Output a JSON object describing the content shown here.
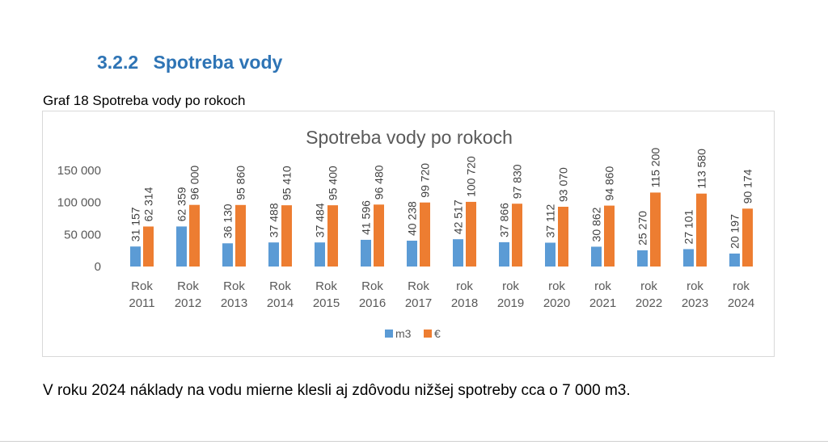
{
  "section": {
    "number": "3.2.2",
    "title": "Spotreba vody"
  },
  "figure": {
    "caption": "Graf 18 Spotreba vody po rokoch"
  },
  "chart_data": {
    "type": "bar",
    "title": "Spotreba vody po rokoch",
    "categories": [
      [
        "Rok",
        "2011"
      ],
      [
        "Rok",
        "2012"
      ],
      [
        "Rok",
        "2013"
      ],
      [
        "Rok",
        "2014"
      ],
      [
        "Rok",
        "2015"
      ],
      [
        "Rok",
        "2016"
      ],
      [
        "Rok",
        "2017"
      ],
      [
        "rok",
        "2018"
      ],
      [
        "rok",
        "2019"
      ],
      [
        "rok",
        "2020"
      ],
      [
        "rok",
        "2021"
      ],
      [
        "rok",
        "2022"
      ],
      [
        "rok",
        "2023"
      ],
      [
        "rok",
        "2024"
      ]
    ],
    "series": [
      {
        "name": "m3",
        "color": "#5B9BD5",
        "values": [
          31157,
          62359,
          36130,
          37488,
          37484,
          41596,
          40238,
          42517,
          37866,
          37112,
          30862,
          25270,
          27101,
          20197
        ],
        "labels": [
          "31 157",
          "62 359",
          "36 130",
          "37 488",
          "37 484",
          "41 596",
          "40 238",
          "42 517",
          "37 866",
          "37 112",
          "30 862",
          "25 270",
          "27 101",
          "20 197"
        ]
      },
      {
        "name": "€",
        "color": "#ED7D31",
        "values": [
          62314,
          96000,
          95860,
          95410,
          95400,
          96480,
          99720,
          100720,
          97830,
          93070,
          94860,
          115200,
          113580,
          90174
        ],
        "labels": [
          "62 314",
          "96 000",
          "95 860",
          "95 410",
          "95 400",
          "96 480",
          "99 720",
          "100 720",
          "97 830",
          "93 070",
          "94 860",
          "115 200",
          "113 580",
          "90 174"
        ]
      }
    ],
    "yticks": [
      {
        "value": 0,
        "label": "0"
      },
      {
        "value": 50000,
        "label": "50 000"
      },
      {
        "value": 100000,
        "label": "100 000"
      },
      {
        "value": 150000,
        "label": "150 000"
      }
    ],
    "ylim": [
      0,
      150000
    ],
    "grid": false,
    "legend": "bottom"
  },
  "paragraph": "V roku 2024 náklady na vodu mierne klesli aj zdôvodu nižšej spotreby cca o 7 000 m3."
}
